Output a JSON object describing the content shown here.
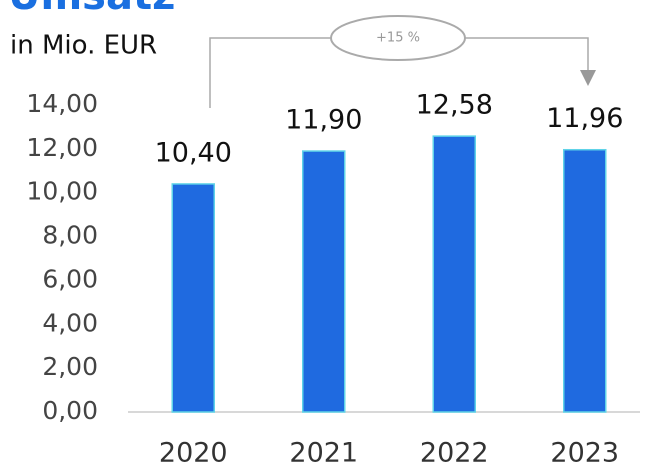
{
  "chart_data": {
    "type": "bar",
    "title": "Umsatz",
    "subtitle": "in Mio. EUR",
    "annotation": "+15 %",
    "categories": [
      "2020",
      "2021",
      "2022",
      "2023"
    ],
    "values": [
      10.4,
      11.9,
      12.58,
      11.96
    ],
    "value_labels": [
      "10,40",
      "11,90",
      "12,58",
      "11,96"
    ],
    "color": "#1f6ae0",
    "ylim": [
      0,
      14
    ],
    "yticks": [
      {
        "value": 0,
        "label": "0,00"
      },
      {
        "value": 2,
        "label": "2,00"
      },
      {
        "value": 4,
        "label": "4,00"
      },
      {
        "value": 6,
        "label": "6,00"
      },
      {
        "value": 8,
        "label": "8,00"
      },
      {
        "value": 10,
        "label": "10,00"
      },
      {
        "value": 12,
        "label": "12,00"
      },
      {
        "value": 14,
        "label": "14,00"
      }
    ]
  }
}
